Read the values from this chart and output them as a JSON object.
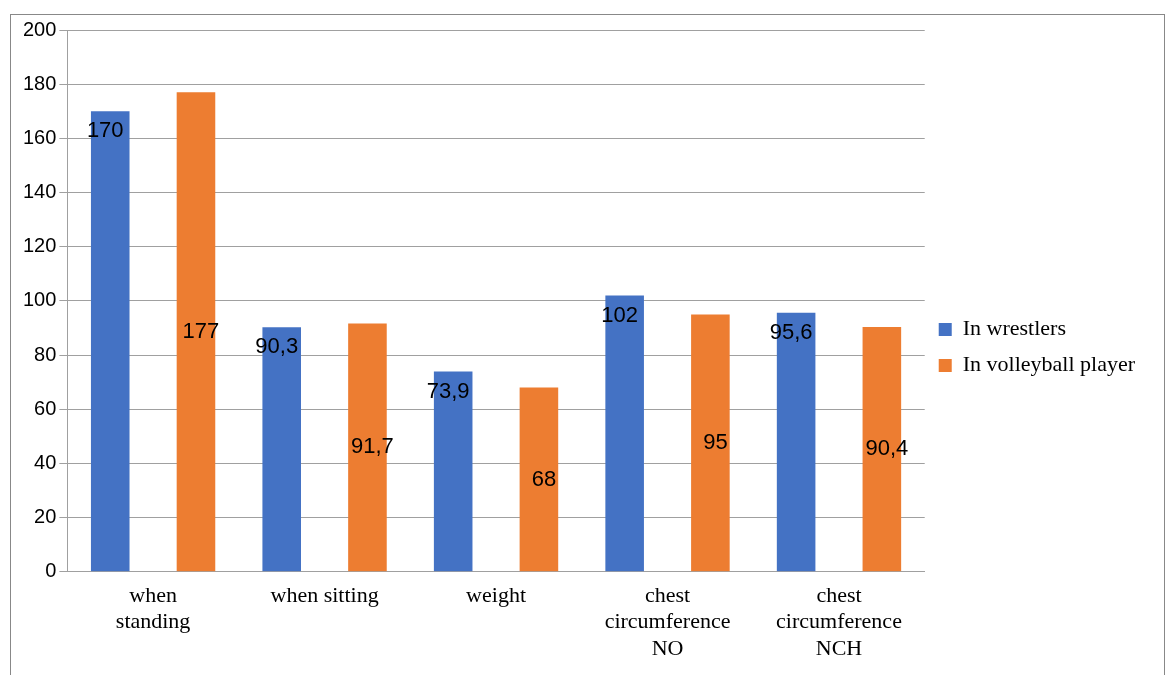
{
  "chart_data": {
    "type": "bar",
    "categories": [
      "when standing",
      "when sitting",
      "weight",
      "chest circumference NO",
      "chest circumference NCH"
    ],
    "series": [
      {
        "name": "In wrestlers",
        "color": "#4472c4",
        "values": [
          170,
          90.3,
          73.9,
          102,
          95.6
        ],
        "value_labels": [
          "170",
          "90,3",
          "73,9",
          "102",
          "95,6"
        ]
      },
      {
        "name": "In volleyball player",
        "color": "#ed7d31",
        "values": [
          177,
          91.7,
          68,
          95,
          90.4
        ],
        "value_labels": [
          "177",
          "91,7",
          "68",
          "95",
          "90,4"
        ]
      }
    ],
    "ylim": [
      0,
      200
    ],
    "yticks": [
      0,
      20,
      40,
      60,
      80,
      100,
      120,
      140,
      160,
      180,
      200
    ],
    "grid": "y",
    "legend": "right"
  }
}
